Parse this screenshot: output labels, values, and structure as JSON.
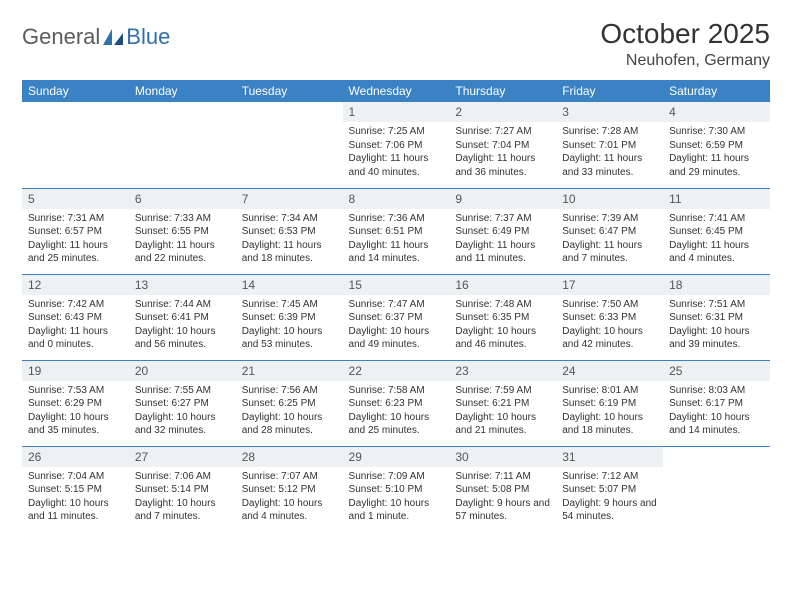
{
  "logo": {
    "part1": "General",
    "part2": "Blue"
  },
  "title": "October 2025",
  "location": "Neuhofen, Germany",
  "colors": {
    "header_bg": "#3b82c4",
    "header_text": "#ffffff",
    "daynum_bg": "#eef1f3",
    "row_border": "#3b82c4",
    "logo_gray": "#5c5c5c",
    "logo_blue": "#2f6fab",
    "page_bg": "#ffffff"
  },
  "fonts": {
    "title_pt": 28,
    "location_pt": 16,
    "dayheader_pt": 12,
    "cell_pt": 10
  },
  "day_headers": [
    "Sunday",
    "Monday",
    "Tuesday",
    "Wednesday",
    "Thursday",
    "Friday",
    "Saturday"
  ],
  "weeks": [
    [
      {
        "day": "",
        "sunrise": "",
        "sunset": "",
        "daylight": ""
      },
      {
        "day": "",
        "sunrise": "",
        "sunset": "",
        "daylight": ""
      },
      {
        "day": "",
        "sunrise": "",
        "sunset": "",
        "daylight": ""
      },
      {
        "day": "1",
        "sunrise": "Sunrise: 7:25 AM",
        "sunset": "Sunset: 7:06 PM",
        "daylight": "Daylight: 11 hours and 40 minutes."
      },
      {
        "day": "2",
        "sunrise": "Sunrise: 7:27 AM",
        "sunset": "Sunset: 7:04 PM",
        "daylight": "Daylight: 11 hours and 36 minutes."
      },
      {
        "day": "3",
        "sunrise": "Sunrise: 7:28 AM",
        "sunset": "Sunset: 7:01 PM",
        "daylight": "Daylight: 11 hours and 33 minutes."
      },
      {
        "day": "4",
        "sunrise": "Sunrise: 7:30 AM",
        "sunset": "Sunset: 6:59 PM",
        "daylight": "Daylight: 11 hours and 29 minutes."
      }
    ],
    [
      {
        "day": "5",
        "sunrise": "Sunrise: 7:31 AM",
        "sunset": "Sunset: 6:57 PM",
        "daylight": "Daylight: 11 hours and 25 minutes."
      },
      {
        "day": "6",
        "sunrise": "Sunrise: 7:33 AM",
        "sunset": "Sunset: 6:55 PM",
        "daylight": "Daylight: 11 hours and 22 minutes."
      },
      {
        "day": "7",
        "sunrise": "Sunrise: 7:34 AM",
        "sunset": "Sunset: 6:53 PM",
        "daylight": "Daylight: 11 hours and 18 minutes."
      },
      {
        "day": "8",
        "sunrise": "Sunrise: 7:36 AM",
        "sunset": "Sunset: 6:51 PM",
        "daylight": "Daylight: 11 hours and 14 minutes."
      },
      {
        "day": "9",
        "sunrise": "Sunrise: 7:37 AM",
        "sunset": "Sunset: 6:49 PM",
        "daylight": "Daylight: 11 hours and 11 minutes."
      },
      {
        "day": "10",
        "sunrise": "Sunrise: 7:39 AM",
        "sunset": "Sunset: 6:47 PM",
        "daylight": "Daylight: 11 hours and 7 minutes."
      },
      {
        "day": "11",
        "sunrise": "Sunrise: 7:41 AM",
        "sunset": "Sunset: 6:45 PM",
        "daylight": "Daylight: 11 hours and 4 minutes."
      }
    ],
    [
      {
        "day": "12",
        "sunrise": "Sunrise: 7:42 AM",
        "sunset": "Sunset: 6:43 PM",
        "daylight": "Daylight: 11 hours and 0 minutes."
      },
      {
        "day": "13",
        "sunrise": "Sunrise: 7:44 AM",
        "sunset": "Sunset: 6:41 PM",
        "daylight": "Daylight: 10 hours and 56 minutes."
      },
      {
        "day": "14",
        "sunrise": "Sunrise: 7:45 AM",
        "sunset": "Sunset: 6:39 PM",
        "daylight": "Daylight: 10 hours and 53 minutes."
      },
      {
        "day": "15",
        "sunrise": "Sunrise: 7:47 AM",
        "sunset": "Sunset: 6:37 PM",
        "daylight": "Daylight: 10 hours and 49 minutes."
      },
      {
        "day": "16",
        "sunrise": "Sunrise: 7:48 AM",
        "sunset": "Sunset: 6:35 PM",
        "daylight": "Daylight: 10 hours and 46 minutes."
      },
      {
        "day": "17",
        "sunrise": "Sunrise: 7:50 AM",
        "sunset": "Sunset: 6:33 PM",
        "daylight": "Daylight: 10 hours and 42 minutes."
      },
      {
        "day": "18",
        "sunrise": "Sunrise: 7:51 AM",
        "sunset": "Sunset: 6:31 PM",
        "daylight": "Daylight: 10 hours and 39 minutes."
      }
    ],
    [
      {
        "day": "19",
        "sunrise": "Sunrise: 7:53 AM",
        "sunset": "Sunset: 6:29 PM",
        "daylight": "Daylight: 10 hours and 35 minutes."
      },
      {
        "day": "20",
        "sunrise": "Sunrise: 7:55 AM",
        "sunset": "Sunset: 6:27 PM",
        "daylight": "Daylight: 10 hours and 32 minutes."
      },
      {
        "day": "21",
        "sunrise": "Sunrise: 7:56 AM",
        "sunset": "Sunset: 6:25 PM",
        "daylight": "Daylight: 10 hours and 28 minutes."
      },
      {
        "day": "22",
        "sunrise": "Sunrise: 7:58 AM",
        "sunset": "Sunset: 6:23 PM",
        "daylight": "Daylight: 10 hours and 25 minutes."
      },
      {
        "day": "23",
        "sunrise": "Sunrise: 7:59 AM",
        "sunset": "Sunset: 6:21 PM",
        "daylight": "Daylight: 10 hours and 21 minutes."
      },
      {
        "day": "24",
        "sunrise": "Sunrise: 8:01 AM",
        "sunset": "Sunset: 6:19 PM",
        "daylight": "Daylight: 10 hours and 18 minutes."
      },
      {
        "day": "25",
        "sunrise": "Sunrise: 8:03 AM",
        "sunset": "Sunset: 6:17 PM",
        "daylight": "Daylight: 10 hours and 14 minutes."
      }
    ],
    [
      {
        "day": "26",
        "sunrise": "Sunrise: 7:04 AM",
        "sunset": "Sunset: 5:15 PM",
        "daylight": "Daylight: 10 hours and 11 minutes."
      },
      {
        "day": "27",
        "sunrise": "Sunrise: 7:06 AM",
        "sunset": "Sunset: 5:14 PM",
        "daylight": "Daylight: 10 hours and 7 minutes."
      },
      {
        "day": "28",
        "sunrise": "Sunrise: 7:07 AM",
        "sunset": "Sunset: 5:12 PM",
        "daylight": "Daylight: 10 hours and 4 minutes."
      },
      {
        "day": "29",
        "sunrise": "Sunrise: 7:09 AM",
        "sunset": "Sunset: 5:10 PM",
        "daylight": "Daylight: 10 hours and 1 minute."
      },
      {
        "day": "30",
        "sunrise": "Sunrise: 7:11 AM",
        "sunset": "Sunset: 5:08 PM",
        "daylight": "Daylight: 9 hours and 57 minutes."
      },
      {
        "day": "31",
        "sunrise": "Sunrise: 7:12 AM",
        "sunset": "Sunset: 5:07 PM",
        "daylight": "Daylight: 9 hours and 54 minutes."
      },
      {
        "day": "",
        "sunrise": "",
        "sunset": "",
        "daylight": ""
      }
    ]
  ]
}
